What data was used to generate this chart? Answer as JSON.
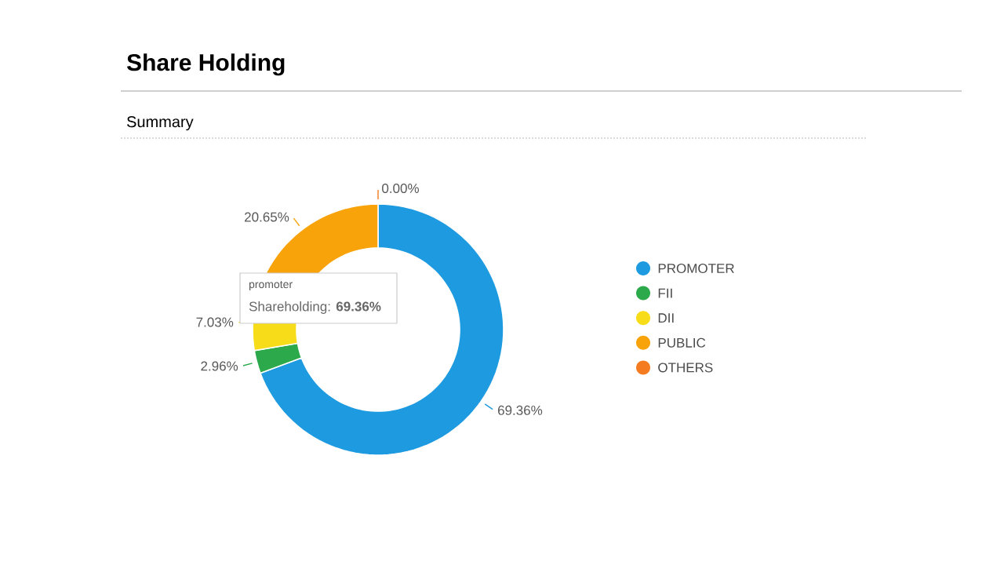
{
  "chart_data": {
    "type": "donut",
    "title": "Share Holding",
    "subtitle": "Summary",
    "categories": [
      "PROMOTER",
      "FII",
      "DII",
      "PUBLIC",
      "OTHERS"
    ],
    "values": [
      69.36,
      2.96,
      7.03,
      20.65,
      0.0
    ],
    "colors": [
      "#1e9be0",
      "#2ca94a",
      "#f7dc1a",
      "#f9a30b",
      "#f47b20"
    ],
    "value_labels": [
      "69.36%",
      "2.96%",
      "7.03%",
      "20.65%",
      "0.00%"
    ],
    "legend": "right",
    "annotations": [
      "promoter",
      "Shareholding: **69.36%**"
    ]
  }
}
